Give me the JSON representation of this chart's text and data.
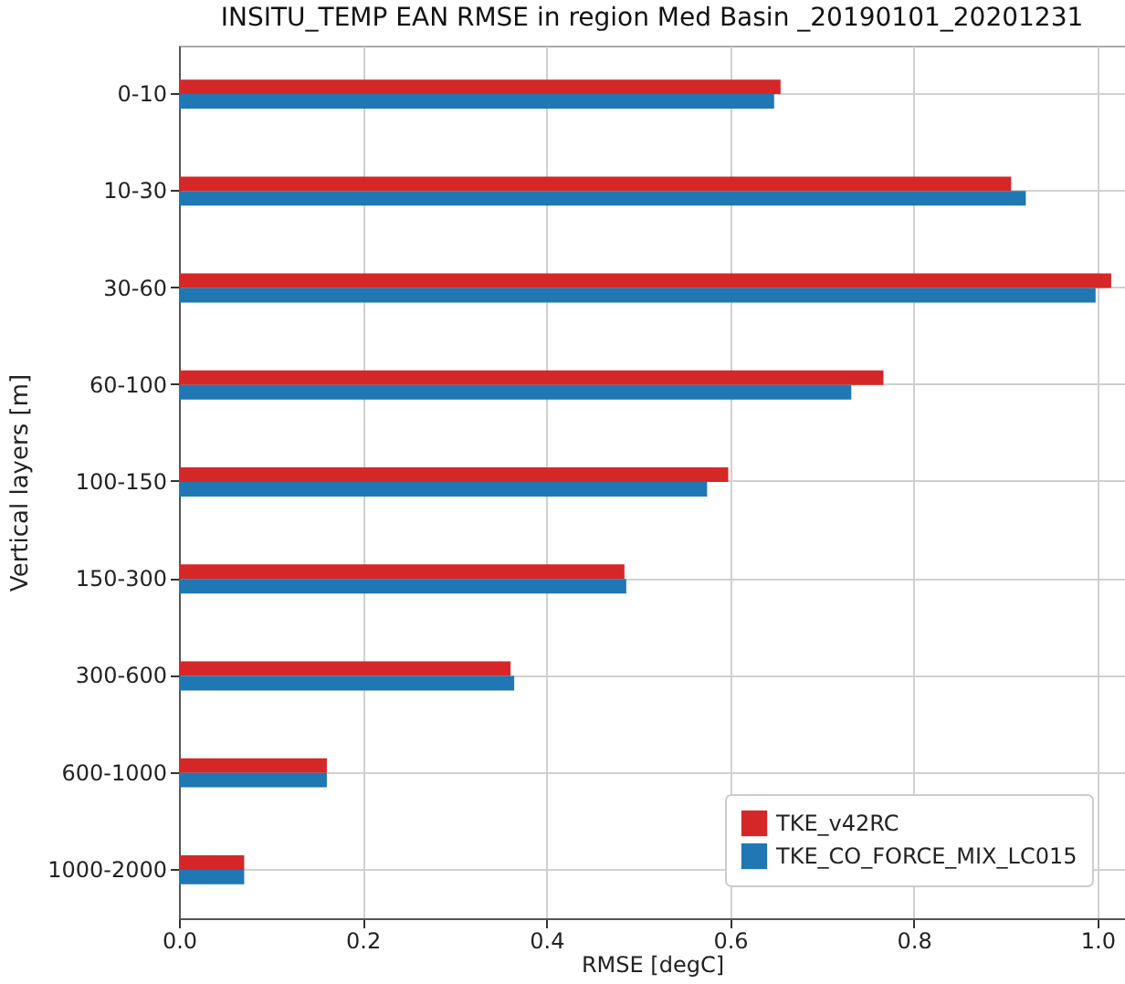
{
  "chart_data": {
    "type": "bar",
    "orientation": "horizontal",
    "title": "INSITU_TEMP EAN RMSE in region Med Basin _20190101_20201231",
    "xlabel": "RMSE [degC]",
    "ylabel": "Vertical layers [m]",
    "categories": [
      "0-10",
      "10-30",
      "30-60",
      "60-100",
      "100-150",
      "150-300",
      "300-600",
      "600-1000",
      "1000-2000"
    ],
    "series": [
      {
        "name": "TKE_v42RC",
        "color": "#d62728",
        "values": [
          0.655,
          0.906,
          1.015,
          0.767,
          0.598,
          0.485,
          0.361,
          0.161,
          0.071
        ]
      },
      {
        "name": "TKE_CO_FORCE_MIX_LC015",
        "color": "#1f77b4",
        "values": [
          0.648,
          0.922,
          0.998,
          0.732,
          0.575,
          0.487,
          0.365,
          0.161,
          0.071
        ]
      }
    ],
    "xlim": [
      0,
      1.03
    ],
    "xticks": [
      {
        "value": 0,
        "label": "0.0"
      },
      {
        "value": 0.2,
        "label": "0.2"
      },
      {
        "value": 0.4,
        "label": "0.4"
      },
      {
        "value": 0.6,
        "label": "0.6"
      },
      {
        "value": 0.8,
        "label": "0.8"
      },
      {
        "value": 1,
        "label": "1.0"
      }
    ],
    "grid": true,
    "legend": "bottom right"
  }
}
